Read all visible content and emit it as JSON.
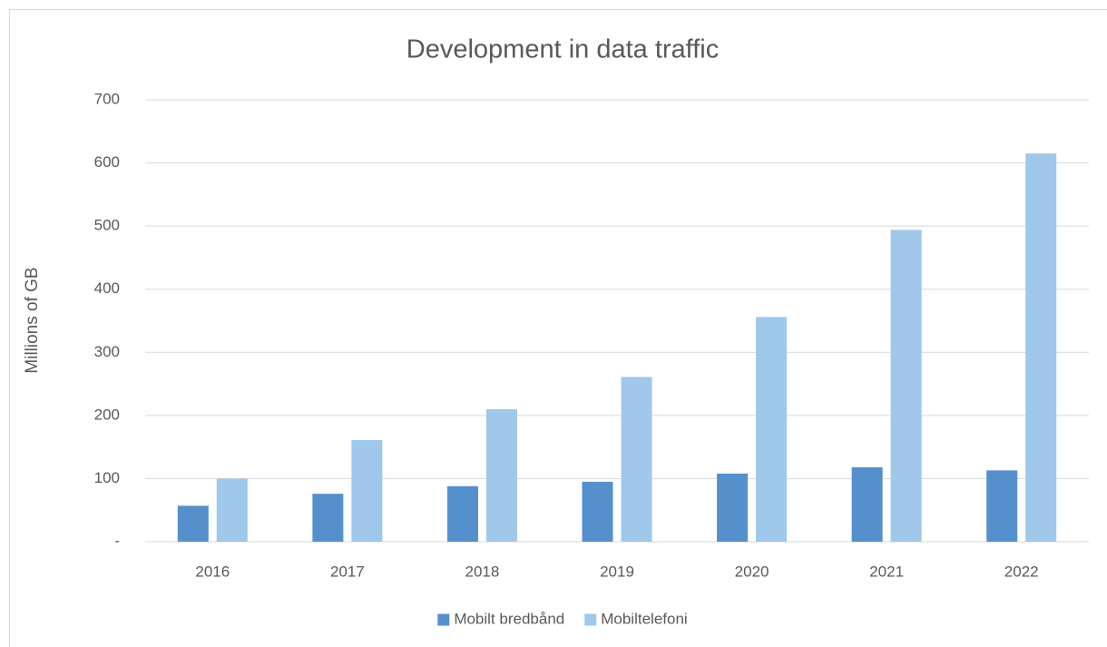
{
  "chart_data": {
    "type": "bar",
    "title": "Development in data traffic",
    "y_label": "Millions of GB",
    "categories": [
      "2016",
      "2017",
      "2018",
      "2019",
      "2020",
      "2021",
      "2022"
    ],
    "series": [
      {
        "name": "Mobilt bredbånd",
        "color": "#5590cc",
        "values": [
          57,
          76,
          88,
          95,
          108,
          118,
          113
        ]
      },
      {
        "name": "Mobiltelefoni",
        "color": "#9fc8ea",
        "values": [
          100,
          161,
          210,
          261,
          356,
          494,
          615
        ]
      }
    ],
    "ylim": [
      0,
      700
    ],
    "yticks": [
      {
        "value": 0,
        "label": "-"
      },
      100,
      200,
      300,
      400,
      500,
      600,
      700
    ],
    "grid": true,
    "legend": "bottom"
  }
}
